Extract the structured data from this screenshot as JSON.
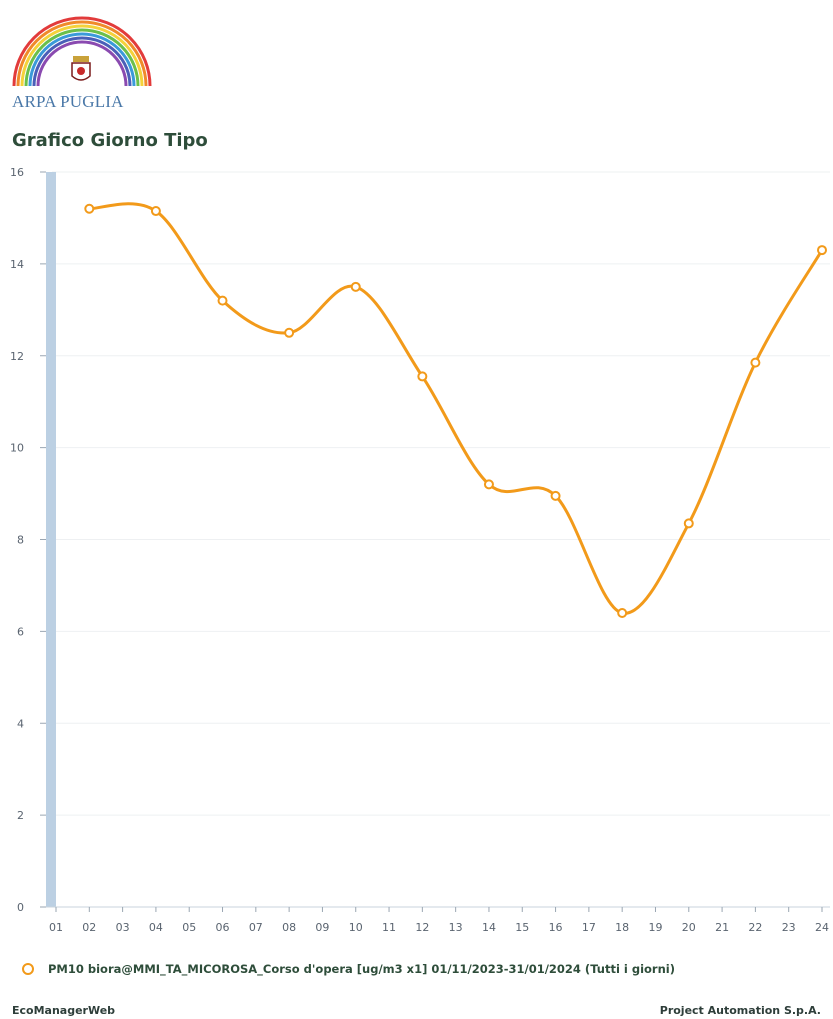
{
  "header": {
    "org_name": "ARPA PUGLIA",
    "title": "Grafico Giorno Tipo"
  },
  "colors": {
    "series": "#f29a1a",
    "axis_bar": "#bcd0e3",
    "title": "#2e4d3a"
  },
  "chart_data": {
    "type": "line",
    "title": "Grafico Giorno Tipo",
    "xlabel": "",
    "ylabel": "",
    "ylim": [
      0,
      16
    ],
    "yticks": [
      0,
      2,
      4,
      6,
      8,
      10,
      12,
      14,
      16
    ],
    "categories": [
      "01",
      "02",
      "03",
      "04",
      "05",
      "06",
      "07",
      "08",
      "09",
      "10",
      "11",
      "12",
      "13",
      "14",
      "15",
      "16",
      "17",
      "18",
      "19",
      "20",
      "21",
      "22",
      "23",
      "24"
    ],
    "series": [
      {
        "name": "PM10 biora@MMI_TA_MICOROSA_Corso d'opera [ug/m3 x1] 01/11/2023-31/01/2024 (Tutti i giorni)",
        "points": [
          {
            "x": "02",
            "y": 15.2
          },
          {
            "x": "04",
            "y": 15.15
          },
          {
            "x": "06",
            "y": 13.2
          },
          {
            "x": "08",
            "y": 12.5
          },
          {
            "x": "10",
            "y": 13.5
          },
          {
            "x": "12",
            "y": 11.55
          },
          {
            "x": "14",
            "y": 9.2
          },
          {
            "x": "16",
            "y": 8.95
          },
          {
            "x": "18",
            "y": 6.4
          },
          {
            "x": "20",
            "y": 8.35
          },
          {
            "x": "22",
            "y": 11.85
          },
          {
            "x": "24",
            "y": 14.3
          }
        ]
      }
    ],
    "grid": true,
    "legend": "bottom"
  },
  "footer": {
    "left": "EcoManagerWeb",
    "right": "Project Automation S.p.A."
  }
}
